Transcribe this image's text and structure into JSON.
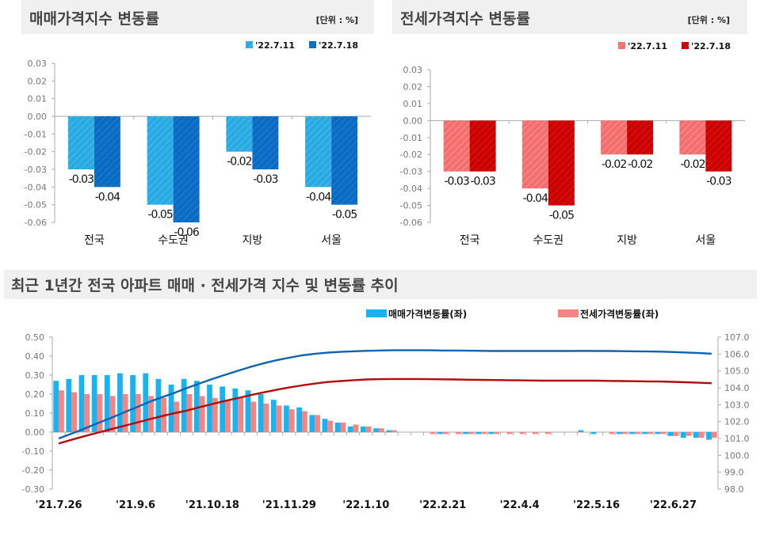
{
  "colors": {
    "sale_light": "#29aae2",
    "sale_dark": "#0b6bc3",
    "jeonse_light": "#f46e6e",
    "jeonse_dark": "#cc0000",
    "rate_sale": "#18b4f0",
    "rate_jeonse": "#f58585",
    "index_sale": "#0e63b0",
    "index_jeonse": "#b10b0b",
    "title_bg": "#f0f0f0"
  },
  "chart_data": [
    {
      "type": "bar",
      "title": "매매가격지수 변동률",
      "unit": "[단위 : %]",
      "categories": [
        "전국",
        "수도권",
        "지방",
        "서울"
      ],
      "series": [
        {
          "name": "'22.7.11",
          "values": [
            -0.03,
            -0.05,
            -0.02,
            -0.04
          ]
        },
        {
          "name": "'22.7.18",
          "values": [
            -0.04,
            -0.06,
            -0.03,
            -0.05
          ]
        }
      ],
      "ylim": [
        -0.06,
        0.03
      ],
      "yticks": [
        "0.03",
        "0.02",
        "0.01",
        "0.00",
        "-0.01",
        "-0.02",
        "-0.03",
        "-0.04",
        "-0.05",
        "-0.06"
      ],
      "data_labels": [
        [
          "-0.03",
          "-0.05",
          "-0.02",
          "-0.04"
        ],
        [
          "-0.04",
          "-0.06",
          "-0.03",
          "-0.05"
        ]
      ],
      "legend": "top-right"
    },
    {
      "type": "bar",
      "title": "전세가격지수 변동률",
      "unit": "[단위 : %]",
      "categories": [
        "전국",
        "수도권",
        "지방",
        "서울"
      ],
      "series": [
        {
          "name": "'22.7.11",
          "values": [
            -0.03,
            -0.04,
            -0.02,
            -0.02
          ]
        },
        {
          "name": "'22.7.18",
          "values": [
            -0.03,
            -0.05,
            -0.02,
            -0.03
          ]
        }
      ],
      "ylim": [
        -0.06,
        0.03
      ],
      "yticks": [
        "0.03",
        "0.02",
        "0.01",
        "0.00",
        "-0.01",
        "-0.02",
        "-0.03",
        "-0.04",
        "-0.05",
        "-0.06"
      ],
      "data_labels": [
        [
          "-0.03",
          "-0.04",
          "-0.02",
          "-0.02"
        ],
        [
          "-0.03",
          "-0.05",
          "-0.02",
          "-0.03"
        ]
      ],
      "legend": "top-right"
    },
    {
      "type": "bar+line",
      "title": "최근 1년간 전국 아파트 매매 · 전세가격 지수 및 변동률 추이",
      "x_tick_labels": [
        "'21.7.26",
        "'21.9.6",
        "'21.10.18",
        "'21.11.29",
        "'22.1.10",
        "'22.2.21",
        "'22.4.4",
        "'22.5.16",
        "'22.6.27"
      ],
      "x_range": [
        "'21.7.26",
        "'22.7.18"
      ],
      "x_interval": "weekly",
      "ylim_left": [
        -0.3,
        0.5
      ],
      "yticks_left": [
        "0.50",
        "0.40",
        "0.30",
        "0.20",
        "0.10",
        "0.00",
        "-0.10",
        "-0.20",
        "-0.30"
      ],
      "ylim_right": [
        98.0,
        107.0
      ],
      "yticks_right": [
        "107.0",
        "106.0",
        "105.0",
        "104.0",
        "103.0",
        "102.0",
        "101.0",
        "100.0",
        "99.0",
        "98.0"
      ],
      "legend": "top-center",
      "series": [
        {
          "name": "매매가격변동률(좌)",
          "axis": "left",
          "kind": "bar",
          "values": [
            0.27,
            0.28,
            0.3,
            0.3,
            0.3,
            0.31,
            0.3,
            0.31,
            0.28,
            0.25,
            0.28,
            0.27,
            0.25,
            0.24,
            0.23,
            0.22,
            0.2,
            0.17,
            0.14,
            0.13,
            0.09,
            0.07,
            0.05,
            0.03,
            0.03,
            0.02,
            0.01,
            0.0,
            0.0,
            0.0,
            -0.01,
            0.0,
            -0.01,
            -0.01,
            -0.01,
            0.0,
            0.0,
            0.0,
            0.0,
            0.0,
            0.0,
            0.01,
            -0.01,
            0.0,
            -0.01,
            -0.01,
            -0.01,
            -0.01,
            -0.02,
            -0.03,
            -0.03,
            -0.04
          ]
        },
        {
          "name": "전세가격변동률(좌)",
          "axis": "left",
          "kind": "bar",
          "values": [
            0.22,
            0.21,
            0.2,
            0.2,
            0.19,
            0.2,
            0.2,
            0.19,
            0.18,
            0.16,
            0.2,
            0.19,
            0.18,
            0.17,
            0.18,
            0.16,
            0.15,
            0.14,
            0.12,
            0.11,
            0.09,
            0.06,
            0.05,
            0.04,
            0.03,
            0.02,
            0.01,
            0.0,
            0.0,
            -0.01,
            -0.01,
            -0.01,
            -0.01,
            -0.01,
            -0.01,
            -0.01,
            -0.01,
            -0.01,
            -0.01,
            0.0,
            0.0,
            0.0,
            0.0,
            -0.01,
            -0.01,
            -0.01,
            -0.01,
            -0.01,
            -0.02,
            -0.02,
            -0.03,
            -0.03
          ]
        },
        {
          "axis": "right",
          "kind": "line",
          "values": [
            101.0,
            101.28,
            101.58,
            101.89,
            102.19,
            102.51,
            102.82,
            103.14,
            103.43,
            103.69,
            103.98,
            104.26,
            104.52,
            104.77,
            105.01,
            105.24,
            105.45,
            105.63,
            105.78,
            105.92,
            106.01,
            106.08,
            106.13,
            106.16,
            106.19,
            106.21,
            106.22,
            106.22,
            106.22,
            106.22,
            106.21,
            106.21,
            106.2,
            106.19,
            106.18,
            106.18,
            106.18,
            106.18,
            106.18,
            106.18,
            106.18,
            106.19,
            106.18,
            106.18,
            106.17,
            106.16,
            106.15,
            106.14,
            106.12,
            106.09,
            106.06,
            106.02
          ]
        },
        {
          "axis": "right",
          "kind": "line",
          "values": [
            100.7,
            100.92,
            101.13,
            101.33,
            101.53,
            101.72,
            101.92,
            102.12,
            102.31,
            102.49,
            102.65,
            102.85,
            103.04,
            103.22,
            103.39,
            103.57,
            103.73,
            103.88,
            104.02,
            104.14,
            104.25,
            104.34,
            104.4,
            104.45,
            104.49,
            104.51,
            104.52,
            104.52,
            104.52,
            104.51,
            104.5,
            104.49,
            104.48,
            104.47,
            104.46,
            104.45,
            104.44,
            104.43,
            104.42,
            104.42,
            104.42,
            104.42,
            104.42,
            104.41,
            104.4,
            104.39,
            104.38,
            104.37,
            104.35,
            104.33,
            104.3,
            104.27
          ]
        }
      ]
    }
  ]
}
